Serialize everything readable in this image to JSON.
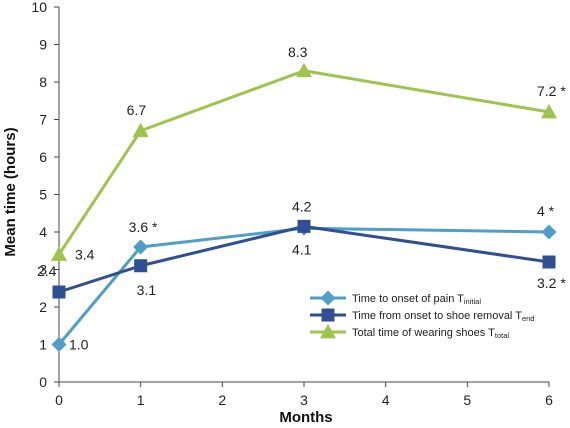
{
  "chart_data": {
    "type": "line",
    "title": "",
    "xlabel": "Months",
    "ylabel": "Mean time (hours)",
    "xlim": [
      0,
      6
    ],
    "ylim": [
      0,
      10
    ],
    "x_ticks": [
      0,
      1,
      2,
      3,
      4,
      5,
      6
    ],
    "y_ticks": [
      0,
      1,
      2,
      3,
      4,
      5,
      6,
      7,
      8,
      9,
      10
    ],
    "grid": false,
    "legend_position": "bottom-right",
    "series": [
      {
        "name_main": "Time to onset of pain T",
        "name_sub": "initial",
        "color": "#4f9ec9",
        "marker": "diamond",
        "x": [
          0,
          1,
          3,
          6
        ],
        "values": [
          1.0,
          3.6,
          4.1,
          4.0
        ],
        "labels": [
          "1.0",
          "3.6 *",
          "4.1",
          "4 *"
        ]
      },
      {
        "name_main": "Time from onset to shoe removal T",
        "name_sub": "end",
        "color": "#2f4f94",
        "marker": "square",
        "x": [
          0,
          1,
          3,
          6
        ],
        "values": [
          2.4,
          3.1,
          4.15,
          3.2
        ],
        "labels": [
          "2.4",
          "3.1",
          "4.2",
          "3.2 *"
        ]
      },
      {
        "name_main": "Total time of wearing shoes T",
        "name_sub": "total",
        "color": "#9dc44b",
        "marker": "triangle",
        "x": [
          0,
          1,
          3,
          6
        ],
        "values": [
          3.4,
          6.7,
          8.3,
          7.2
        ],
        "labels": [
          "3.4",
          "6.7",
          "8.3",
          "7.2 *"
        ]
      }
    ]
  }
}
